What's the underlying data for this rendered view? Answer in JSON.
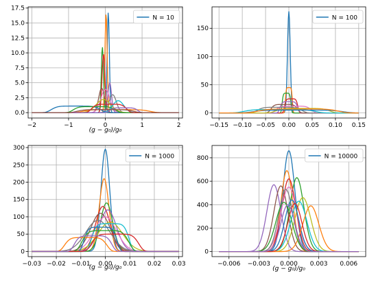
{
  "colors": [
    "#1f77b4",
    "#ff7f0e",
    "#2ca02c",
    "#d62728",
    "#9467bd",
    "#8c564b",
    "#e377c2",
    "#7f7f7f",
    "#bcbd22",
    "#17becf"
  ],
  "chart_data": [
    {
      "type": "line",
      "xlabel": "(g − g₀)/g₀",
      "xlim": [
        -2.1,
        2.1
      ],
      "ylim": [
        -0.9,
        17.7
      ],
      "xticks": [
        -2,
        -1,
        0,
        1,
        2
      ],
      "xtick_labels": [
        "−2",
        "−1",
        "0",
        "1",
        "2"
      ],
      "yticks": [
        0.0,
        2.5,
        5.0,
        7.5,
        10.0,
        12.5,
        15.0,
        17.5
      ],
      "ytick_labels": [
        "0.0",
        "2.5",
        "5.0",
        "7.5",
        "10.0",
        "12.5",
        "15.0",
        "17.5"
      ],
      "legend": {
        "label": "N = 10",
        "position": "top-right"
      },
      "base_x": [
        -2,
        2
      ],
      "curves": [
        {
          "c": 0.08,
          "w": 0.03,
          "h": 16.8,
          "shape": "spike"
        },
        {
          "c": 0.02,
          "w": 0.03,
          "h": 16.6,
          "shape": "spike"
        },
        {
          "c": -0.08,
          "w": 0.03,
          "h": 11.0,
          "shape": "spike"
        },
        {
          "c": -0.05,
          "w": 0.04,
          "h": 9.8,
          "shape": "spike"
        },
        {
          "c": 0.12,
          "w": 0.05,
          "h": 5.0,
          "shape": "spike"
        },
        {
          "c": -0.1,
          "w": 0.08,
          "h": 4.1,
          "shape": "spike"
        },
        {
          "c": 0.0,
          "w": 0.12,
          "h": 3.9,
          "shape": "spike"
        },
        {
          "c": 0.2,
          "w": 0.1,
          "h": 3.0,
          "shape": "spike"
        },
        {
          "c": -0.05,
          "w": 0.2,
          "h": 2.2,
          "shape": "spike"
        },
        {
          "c": 0.35,
          "w": 0.15,
          "h": 2.0,
          "shape": "spike"
        },
        {
          "c": -0.8,
          "w": 0.7,
          "h": 1.1,
          "shape": "plateau"
        },
        {
          "c": 0.3,
          "w": 0.95,
          "h": 0.5,
          "shape": "plateau"
        },
        {
          "c": -0.3,
          "w": 0.6,
          "h": 1.0,
          "shape": "plateau"
        },
        {
          "c": 0.1,
          "w": 0.5,
          "h": 1.4,
          "shape": "plateau"
        },
        {
          "c": 0.5,
          "w": 0.4,
          "h": 0.8,
          "shape": "plateau"
        },
        {
          "c": 0.0,
          "w": 0.8,
          "h": 0.5,
          "shape": "plateau"
        }
      ]
    },
    {
      "type": "line",
      "xlabel": "",
      "xlim": [
        -0.165,
        0.165
      ],
      "ylim": [
        -9,
        188
      ],
      "xticks": [
        -0.15,
        -0.1,
        -0.05,
        0.0,
        0.05,
        0.1,
        0.15
      ],
      "xtick_labels": [
        "−0.15",
        "−0.10",
        "−0.05",
        "0.00",
        "0.05",
        "0.10",
        "0.15"
      ],
      "yticks": [
        0,
        50,
        100,
        150
      ],
      "ytick_labels": [
        "0",
        "50",
        "100",
        "150"
      ],
      "legend": {
        "label": "N = 100",
        "position": "top-right"
      },
      "base_x": [
        -0.15,
        0.15
      ],
      "curves": [
        {
          "c": 0.0,
          "w": 0.003,
          "h": 180,
          "shape": "spike"
        },
        {
          "c": 0.0,
          "w": 0.008,
          "h": 45,
          "shape": "plateau"
        },
        {
          "c": -0.005,
          "w": 0.01,
          "h": 35,
          "shape": "plateau"
        },
        {
          "c": 0.005,
          "w": 0.015,
          "h": 25,
          "shape": "plateau"
        },
        {
          "c": 0.0,
          "w": 0.02,
          "h": 20,
          "shape": "plateau"
        },
        {
          "c": -0.01,
          "w": 0.03,
          "h": 15,
          "shape": "plateau"
        },
        {
          "c": 0.01,
          "w": 0.04,
          "h": 12,
          "shape": "plateau"
        },
        {
          "c": -0.02,
          "w": 0.05,
          "h": 10,
          "shape": "plateau"
        },
        {
          "c": 0.03,
          "w": 0.06,
          "h": 8,
          "shape": "plateau"
        },
        {
          "c": -0.02,
          "w": 0.08,
          "h": 6,
          "shape": "plateau"
        },
        {
          "c": 0.02,
          "w": 0.1,
          "h": 5,
          "shape": "plateau"
        },
        {
          "c": 0.02,
          "w": 0.09,
          "h": 7,
          "shape": "plateau"
        }
      ]
    },
    {
      "type": "line",
      "xlabel": "(g − g₀)/g₀",
      "xlim": [
        -0.0315,
        0.0315
      ],
      "ylim": [
        -15,
        306
      ],
      "xticks": [
        -0.03,
        -0.02,
        -0.01,
        0.0,
        0.01,
        0.02,
        0.03
      ],
      "xtick_labels": [
        "−0.03",
        "−0.02",
        "−0.01",
        "0.00",
        "0.01",
        "0.02",
        "0.03"
      ],
      "yticks": [
        0,
        50,
        100,
        150,
        200,
        250,
        300
      ],
      "ytick_labels": [
        "0",
        "50",
        "100",
        "150",
        "200",
        "250",
        "300"
      ],
      "legend": {
        "label": "N = 1000",
        "position": "top-right"
      },
      "base_x": [
        -0.03,
        0.03
      ],
      "curves": [
        {
          "c": 0.0,
          "w": 0.0018,
          "h": 295,
          "shape": "gauss"
        },
        {
          "c": -0.0005,
          "w": 0.002,
          "h": 210,
          "shape": "gauss"
        },
        {
          "c": 0.0005,
          "w": 0.0025,
          "h": 140,
          "shape": "gauss"
        },
        {
          "c": -0.001,
          "w": 0.003,
          "h": 130,
          "shape": "gauss"
        },
        {
          "c": 0.001,
          "w": 0.0035,
          "h": 120,
          "shape": "gauss"
        },
        {
          "c": -0.002,
          "w": 0.004,
          "h": 110,
          "shape": "gauss"
        },
        {
          "c": 0.0,
          "w": 0.0045,
          "h": 100,
          "shape": "gauss"
        },
        {
          "c": -0.003,
          "w": 0.005,
          "h": 90,
          "shape": "gauss"
        },
        {
          "c": 0.002,
          "w": 0.005,
          "h": 85,
          "shape": "gauss"
        },
        {
          "c": 0.002,
          "w": 0.008,
          "h": 80,
          "shape": "plateau"
        },
        {
          "c": -0.002,
          "w": 0.007,
          "h": 70,
          "shape": "plateau"
        },
        {
          "c": -0.008,
          "w": 0.009,
          "h": 40,
          "shape": "plateau"
        },
        {
          "c": 0.0,
          "w": 0.01,
          "h": 60,
          "shape": "plateau"
        },
        {
          "c": 0.004,
          "w": 0.01,
          "h": 50,
          "shape": "plateau"
        },
        {
          "c": -0.005,
          "w": 0.008,
          "h": 45,
          "shape": "plateau"
        }
      ]
    },
    {
      "type": "line",
      "xlabel": "(g − g₀)/g₀",
      "xlim": [
        -0.0077,
        0.0077
      ],
      "ylim": [
        -43,
        905
      ],
      "xticks": [
        -0.006,
        -0.003,
        0.0,
        0.003,
        0.006
      ],
      "xtick_labels": [
        "−0.006",
        "−0.003",
        "0.000",
        "0.003",
        "0.006"
      ],
      "yticks": [
        0,
        200,
        400,
        600,
        800
      ],
      "ytick_labels": [
        "0",
        "200",
        "400",
        "600",
        "800"
      ],
      "legend": {
        "label": "N = 10000",
        "position": "top-right"
      },
      "base_x": [
        -0.007,
        0.007
      ],
      "curves": [
        {
          "c": 0.0,
          "w": 0.0006,
          "h": 860,
          "shape": "gauss"
        },
        {
          "c": -0.0002,
          "w": 0.0006,
          "h": 690,
          "shape": "gauss"
        },
        {
          "c": 0.0008,
          "w": 0.0007,
          "h": 630,
          "shape": "gauss"
        },
        {
          "c": 0.0,
          "w": 0.0007,
          "h": 620,
          "shape": "gauss"
        },
        {
          "c": -0.0015,
          "w": 0.0007,
          "h": 570,
          "shape": "gauss"
        },
        {
          "c": -0.0008,
          "w": 0.0007,
          "h": 560,
          "shape": "gauss"
        },
        {
          "c": 0.0,
          "w": 0.0008,
          "h": 550,
          "shape": "gauss"
        },
        {
          "c": -0.0003,
          "w": 0.0007,
          "h": 530,
          "shape": "gauss"
        },
        {
          "c": 0.0014,
          "w": 0.0008,
          "h": 460,
          "shape": "gauss"
        },
        {
          "c": 0.001,
          "w": 0.0008,
          "h": 430,
          "shape": "gauss"
        },
        {
          "c": 0.0003,
          "w": 0.0007,
          "h": 440,
          "shape": "gauss"
        },
        {
          "c": 0.0022,
          "w": 0.0008,
          "h": 390,
          "shape": "gauss"
        },
        {
          "c": -0.0005,
          "w": 0.0008,
          "h": 420,
          "shape": "gauss"
        },
        {
          "c": 0.0006,
          "w": 0.0007,
          "h": 410,
          "shape": "gauss"
        },
        {
          "c": -0.0001,
          "w": 0.0007,
          "h": 400,
          "shape": "gauss"
        }
      ]
    }
  ]
}
